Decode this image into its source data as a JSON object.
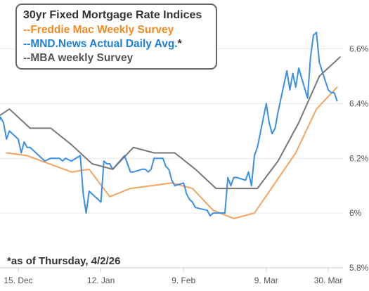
{
  "chart_data": {
    "type": "line",
    "title": "30yr Fixed Mortgage Rate Indices",
    "xlabel": "",
    "ylabel": "",
    "ylim": [
      5.8,
      6.7
    ],
    "yticks": [
      5.8,
      6.0,
      6.2,
      6.4,
      6.6
    ],
    "ytick_labels": [
      "5.8%",
      "6%",
      "6.2%",
      "6.4%",
      "6.6%"
    ],
    "x_range": [
      "2025-12-08",
      "2026-04-03"
    ],
    "xticks": [
      "2025-12-15",
      "2026-01-12",
      "2026-02-09",
      "2026-03-09",
      "2026-03-30"
    ],
    "xtick_labels": [
      "15. Dec",
      "12. Jan",
      "9. Feb",
      "9. Mar",
      "30. Mar"
    ],
    "grid": true,
    "legend_position": "top-left",
    "footnote": "*as of Thursday, 4/2/26",
    "series": [
      {
        "name": "--Freddie Mac Weekly Survey",
        "color": "#f4a460",
        "x": [
          "2025-12-11",
          "2025-12-18",
          "2026-01-02",
          "2026-01-08",
          "2026-01-15",
          "2026-01-22",
          "2026-01-29",
          "2026-02-05",
          "2026-02-12",
          "2026-02-19",
          "2026-02-26",
          "2026-03-05",
          "2026-03-12",
          "2026-03-19",
          "2026-03-26",
          "2026-04-02"
        ],
        "values": [
          6.22,
          6.21,
          6.15,
          6.16,
          6.06,
          6.09,
          6.1,
          6.11,
          6.09,
          6.01,
          5.98,
          6.0,
          6.11,
          6.22,
          6.38,
          6.46
        ]
      },
      {
        "name": "--MND.News Actual Daily Avg.",
        "color": "#3a8ee6",
        "x": [
          "2025-12-08",
          "2025-12-09",
          "2025-12-10",
          "2025-12-11",
          "2025-12-12",
          "2025-12-15",
          "2025-12-16",
          "2025-12-17",
          "2025-12-18",
          "2025-12-19",
          "2025-12-22",
          "2025-12-23",
          "2025-12-24",
          "2025-12-26",
          "2025-12-29",
          "2025-12-30",
          "2025-12-31",
          "2026-01-02",
          "2026-01-05",
          "2026-01-06",
          "2026-01-07",
          "2026-01-08",
          "2026-01-09",
          "2026-01-12",
          "2026-01-13",
          "2026-01-14",
          "2026-01-15",
          "2026-01-16",
          "2026-01-20",
          "2026-01-21",
          "2026-01-22",
          "2026-01-23",
          "2026-01-26",
          "2026-01-27",
          "2026-01-28",
          "2026-01-29",
          "2026-01-30",
          "2026-02-02",
          "2026-02-03",
          "2026-02-04",
          "2026-02-05",
          "2026-02-06",
          "2026-02-09",
          "2026-02-10",
          "2026-02-11",
          "2026-02-12",
          "2026-02-13",
          "2026-02-17",
          "2026-02-18",
          "2026-02-19",
          "2026-02-20",
          "2026-02-23",
          "2026-02-24",
          "2026-02-25",
          "2026-02-26",
          "2026-02-27",
          "2026-03-02",
          "2026-03-03",
          "2026-03-04",
          "2026-03-05",
          "2026-03-06",
          "2026-03-09",
          "2026-03-10",
          "2026-03-11",
          "2026-03-12",
          "2026-03-13",
          "2026-03-16",
          "2026-03-17",
          "2026-03-18",
          "2026-03-19",
          "2026-03-20",
          "2026-03-23",
          "2026-03-24",
          "2026-03-25",
          "2026-03-26",
          "2026-03-27",
          "2026-03-30",
          "2026-03-31",
          "2026-04-01",
          "2026-04-02"
        ],
        "values": [
          6.32,
          6.35,
          6.33,
          6.27,
          6.3,
          6.27,
          6.22,
          6.26,
          6.24,
          6.24,
          6.21,
          6.2,
          6.19,
          6.2,
          6.2,
          6.19,
          6.2,
          6.19,
          6.21,
          6.07,
          6.0,
          6.08,
          6.07,
          6.04,
          6.19,
          6.18,
          6.18,
          6.16,
          6.21,
          6.18,
          6.15,
          6.15,
          6.16,
          6.16,
          6.15,
          6.16,
          6.2,
          6.2,
          6.17,
          6.16,
          6.12,
          6.1,
          6.11,
          6.07,
          6.05,
          6.04,
          6.02,
          6.01,
          5.99,
          6.0,
          6.0,
          6.0,
          6.13,
          6.1,
          6.13,
          6.13,
          6.12,
          6.15,
          6.1,
          6.21,
          6.24,
          6.4,
          6.33,
          6.29,
          6.31,
          6.37,
          6.52,
          6.45,
          6.51,
          6.46,
          6.53,
          6.42,
          6.57,
          6.65,
          6.66,
          6.55,
          6.45,
          6.44,
          6.44,
          6.41
        ]
      },
      {
        "name": "--MBA weekly Survey",
        "color": "#777777",
        "x": [
          "2025-12-05",
          "2025-12-12",
          "2025-12-19",
          "2025-12-26",
          "2026-01-02",
          "2026-01-09",
          "2026-01-16",
          "2026-01-23",
          "2026-01-30",
          "2026-02-06",
          "2026-02-13",
          "2026-02-20",
          "2026-02-27",
          "2026-03-06",
          "2026-03-13",
          "2026-03-20",
          "2026-03-27",
          "2026-04-03"
        ],
        "values": [
          6.33,
          6.38,
          6.31,
          6.31,
          6.25,
          6.18,
          6.16,
          6.24,
          6.22,
          6.22,
          6.16,
          6.09,
          6.09,
          6.09,
          6.19,
          6.33,
          6.5,
          6.57
        ]
      }
    ]
  }
}
